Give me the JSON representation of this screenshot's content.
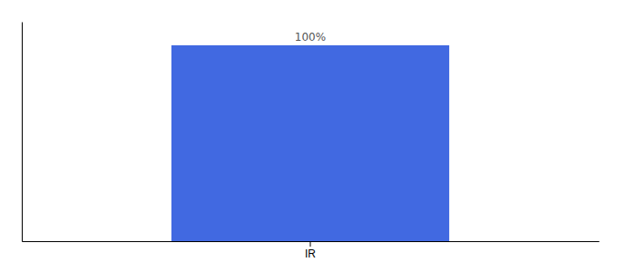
{
  "chart_data": {
    "type": "bar",
    "categories": [
      "IR"
    ],
    "values": [
      100
    ],
    "value_labels": [
      "100%"
    ],
    "data_labels": true,
    "color": "#4169e1",
    "ylim": [
      0,
      112
    ],
    "yticks": [],
    "tick_labels": "x",
    "grid": false
  }
}
